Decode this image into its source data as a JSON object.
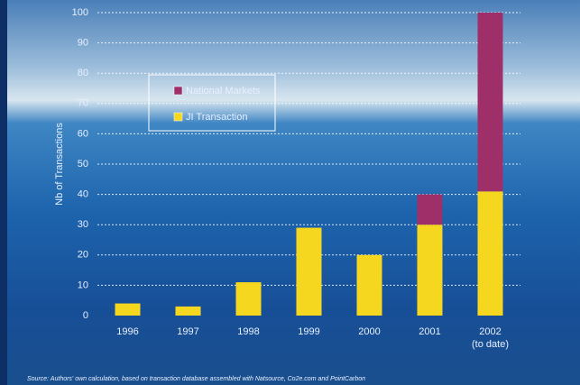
{
  "chart_data": {
    "type": "stacked-bar",
    "y_label": "Nb of Transactions",
    "categories": [
      "1996",
      "1997",
      "1998",
      "1999",
      "2000",
      "2001",
      "2002"
    ],
    "category_notes": [
      null,
      null,
      null,
      null,
      null,
      null,
      "(to date)"
    ],
    "series": [
      {
        "name": "JI Transaction",
        "color": "#f6d71f",
        "values": [
          4,
          3,
          11,
          29,
          20,
          30,
          41
        ]
      },
      {
        "name": "National Markets",
        "color": "#9e2f68",
        "values": [
          0,
          0,
          0,
          0,
          0,
          10,
          59
        ]
      }
    ],
    "ylim": [
      0,
      100
    ],
    "yticks": [
      0,
      10,
      20,
      30,
      40,
      50,
      60,
      70,
      80,
      90,
      100
    ],
    "grid": true,
    "source": "Source: Authors' own calculation, based on transaction database assembled with Natsource, Co2e.com and PointCarbon"
  }
}
